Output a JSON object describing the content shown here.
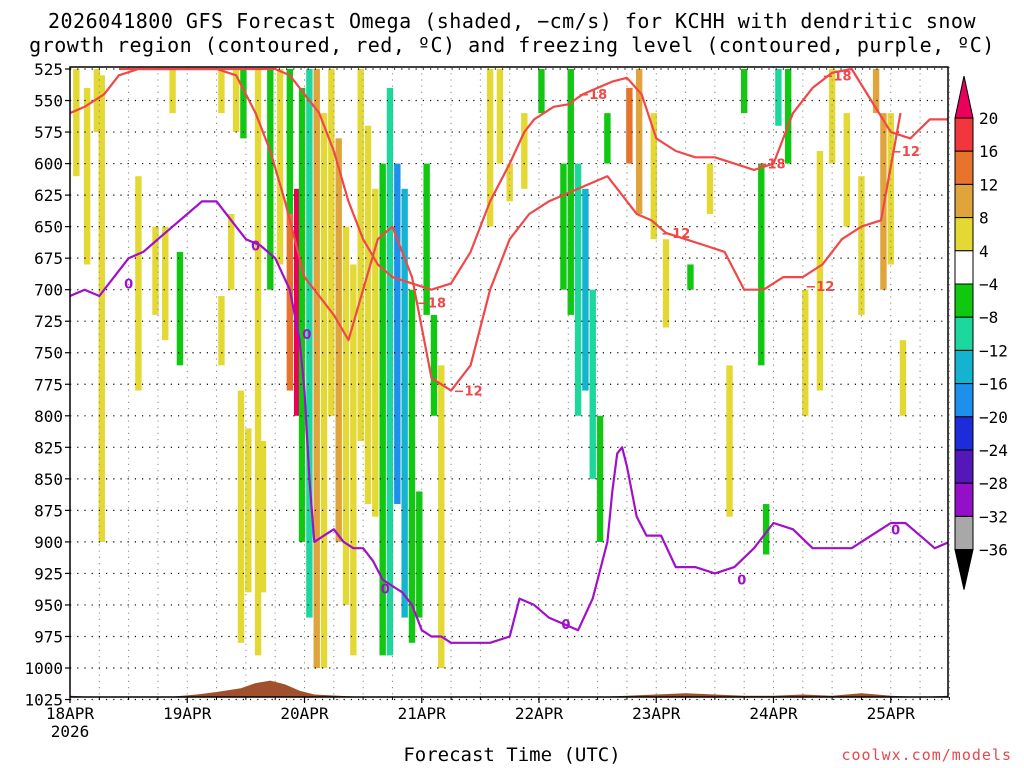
{
  "header": {
    "title_line1": "2026041800 GFS Forecast Omega (shaded, −cm/s) for KCHH with dendritic snow",
    "title_line2": "growth region (contoured, red, ºC) and freezing level (contoured, purple, ºC)"
  },
  "footer": {
    "xlabel": "Forecast Time (UTC)",
    "credit": "coolwx.com/models"
  },
  "chart_data": {
    "type": "heatmap",
    "title": "2026041800 GFS Forecast Omega (shaded, −cm/s) for KCHH with dendritic snow growth region (contoured, red, ºC) and freezing level (contoured, purple, ºC)",
    "xlabel": "Forecast Time (UTC)",
    "ylabel": "",
    "x_range_hours": [
      0,
      180
    ],
    "y_axis": "pressure (hPa), inverted",
    "ylim": [
      1030,
      525
    ],
    "x_ticks": [
      {
        "hour": 0,
        "label": "18APR",
        "sublabel": "2026"
      },
      {
        "hour": 24,
        "label": "19APR"
      },
      {
        "hour": 48,
        "label": "20APR"
      },
      {
        "hour": 72,
        "label": "21APR"
      },
      {
        "hour": 96,
        "label": "22APR"
      },
      {
        "hour": 120,
        "label": "23APR"
      },
      {
        "hour": 144,
        "label": "24APR"
      },
      {
        "hour": 168,
        "label": "25APR"
      }
    ],
    "y_ticks": [
      525,
      550,
      575,
      600,
      625,
      650,
      675,
      700,
      725,
      750,
      775,
      800,
      825,
      850,
      875,
      900,
      925,
      950,
      975,
      1000,
      1025
    ],
    "grid": true,
    "colorbar": {
      "labels": [
        "20",
        "16",
        "12",
        "8",
        "4",
        "−4",
        "−8",
        "−12",
        "−16",
        "−20",
        "−24",
        "−28",
        "−32",
        "−36"
      ],
      "colors": [
        "#e8005a",
        "#f0383c",
        "#e8742c",
        "#e0a43c",
        "#e4d834",
        "#ffffff",
        "#10c810",
        "#1cd89c",
        "#14b4d0",
        "#1c90ec",
        "#1c2cd8",
        "#5418b8",
        "#9410c8",
        "#a8a8a8",
        "#000000"
      ]
    },
    "omega_cells": [
      {
        "x": 1.3,
        "p1": 525,
        "p2": 610,
        "v": 5
      },
      {
        "x": 3.5,
        "p1": 540,
        "p2": 680,
        "v": 5
      },
      {
        "x": 5.5,
        "p1": 525,
        "p2": 575,
        "v": 5
      },
      {
        "x": 6.5,
        "p1": 530,
        "p2": 900,
        "v": 5
      },
      {
        "x": 14,
        "p1": 610,
        "p2": 780,
        "v": 5
      },
      {
        "x": 17.5,
        "p1": 650,
        "p2": 720,
        "v": 5
      },
      {
        "x": 19.5,
        "p1": 650,
        "p2": 740,
        "v": 5
      },
      {
        "x": 21,
        "p1": 525,
        "p2": 560,
        "v": 5
      },
      {
        "x": 22.5,
        "p1": 670,
        "p2": 760,
        "v": -5
      },
      {
        "x": 31,
        "p1": 525,
        "p2": 560,
        "v": 5
      },
      {
        "x": 31,
        "p1": 705,
        "p2": 760,
        "v": 5
      },
      {
        "x": 34,
        "p1": 525,
        "p2": 575,
        "v": 5
      },
      {
        "x": 35.5,
        "p1": 525,
        "p2": 580,
        "v": -5
      },
      {
        "x": 33,
        "p1": 640,
        "p2": 700,
        "v": 5
      },
      {
        "x": 35,
        "p1": 780,
        "p2": 980,
        "v": 5
      },
      {
        "x": 36.5,
        "p1": 810,
        "p2": 940,
        "v": 5
      },
      {
        "x": 38.5,
        "p1": 525,
        "p2": 990,
        "v": 5
      },
      {
        "x": 39.5,
        "p1": 820,
        "p2": 940,
        "v": 5
      },
      {
        "x": 41,
        "p1": 525,
        "p2": 700,
        "v": -5
      },
      {
        "x": 43,
        "p1": 525,
        "p2": 680,
        "v": 5
      },
      {
        "x": 45,
        "p1": 525,
        "p2": 640,
        "v": -5
      },
      {
        "x": 45,
        "p1": 640,
        "p2": 780,
        "v": 13
      },
      {
        "x": 46.5,
        "p1": 620,
        "p2": 800,
        "v": 20
      },
      {
        "x": 47.5,
        "p1": 540,
        "p2": 900,
        "v": -6
      },
      {
        "x": 49,
        "p1": 525,
        "p2": 960,
        "v": -9
      },
      {
        "x": 50.5,
        "p1": 525,
        "p2": 1000,
        "v": 9
      },
      {
        "x": 52,
        "p1": 560,
        "p2": 1000,
        "v": 5
      },
      {
        "x": 53.5,
        "p1": 525,
        "p2": 800,
        "v": 5
      },
      {
        "x": 55,
        "p1": 580,
        "p2": 900,
        "v": 11
      },
      {
        "x": 56.5,
        "p1": 650,
        "p2": 950,
        "v": 5
      },
      {
        "x": 58,
        "p1": 680,
        "p2": 990,
        "v": 5
      },
      {
        "x": 59.5,
        "p1": 525,
        "p2": 820,
        "v": 5
      },
      {
        "x": 61,
        "p1": 570,
        "p2": 870,
        "v": 5
      },
      {
        "x": 62.5,
        "p1": 620,
        "p2": 880,
        "v": 5
      },
      {
        "x": 64,
        "p1": 600,
        "p2": 990,
        "v": -7
      },
      {
        "x": 65.5,
        "p1": 540,
        "p2": 990,
        "v": -11
      },
      {
        "x": 67,
        "p1": 600,
        "p2": 870,
        "v": -17
      },
      {
        "x": 68.5,
        "p1": 620,
        "p2": 960,
        "v": -13
      },
      {
        "x": 70,
        "p1": 700,
        "p2": 980,
        "v": -6
      },
      {
        "x": 71.5,
        "p1": 860,
        "p2": 960,
        "v": -6
      },
      {
        "x": 73,
        "p1": 600,
        "p2": 720,
        "v": -6
      },
      {
        "x": 74.5,
        "p1": 720,
        "p2": 800,
        "v": -5
      },
      {
        "x": 76,
        "p1": 760,
        "p2": 1000,
        "v": 5
      },
      {
        "x": 86,
        "p1": 525,
        "p2": 650,
        "v": 5
      },
      {
        "x": 88,
        "p1": 525,
        "p2": 600,
        "v": 5
      },
      {
        "x": 90,
        "p1": 600,
        "p2": 630,
        "v": 5
      },
      {
        "x": 93,
        "p1": 560,
        "p2": 620,
        "v": 5
      },
      {
        "x": 96.5,
        "p1": 525,
        "p2": 560,
        "v": -5
      },
      {
        "x": 101,
        "p1": 600,
        "p2": 700,
        "v": -6
      },
      {
        "x": 102.5,
        "p1": 525,
        "p2": 720,
        "v": -6
      },
      {
        "x": 104,
        "p1": 600,
        "p2": 800,
        "v": -9
      },
      {
        "x": 105.5,
        "p1": 620,
        "p2": 780,
        "v": -13
      },
      {
        "x": 107,
        "p1": 700,
        "p2": 850,
        "v": -9
      },
      {
        "x": 108.5,
        "p1": 800,
        "p2": 900,
        "v": -6
      },
      {
        "x": 110,
        "p1": 560,
        "p2": 600,
        "v": -6
      },
      {
        "x": 114.5,
        "p1": 540,
        "p2": 600,
        "v": 13
      },
      {
        "x": 116.5,
        "p1": 525,
        "p2": 640,
        "v": 10
      },
      {
        "x": 119.5,
        "p1": 560,
        "p2": 660,
        "v": 5
      },
      {
        "x": 122,
        "p1": 660,
        "p2": 730,
        "v": 5
      },
      {
        "x": 127,
        "p1": 680,
        "p2": 700,
        "v": -6
      },
      {
        "x": 131,
        "p1": 600,
        "p2": 640,
        "v": 5
      },
      {
        "x": 135,
        "p1": 760,
        "p2": 880,
        "v": 5
      },
      {
        "x": 138,
        "p1": 525,
        "p2": 560,
        "v": -6
      },
      {
        "x": 141.5,
        "p1": 600,
        "p2": 760,
        "v": -6
      },
      {
        "x": 142.5,
        "p1": 870,
        "p2": 910,
        "v": -6
      },
      {
        "x": 145,
        "p1": 525,
        "p2": 570,
        "v": -8
      },
      {
        "x": 147,
        "p1": 525,
        "p2": 600,
        "v": -6
      },
      {
        "x": 150.5,
        "p1": 700,
        "p2": 800,
        "v": 5
      },
      {
        "x": 153.5,
        "p1": 590,
        "p2": 780,
        "v": 5
      },
      {
        "x": 156,
        "p1": 525,
        "p2": 600,
        "v": 5
      },
      {
        "x": 159,
        "p1": 560,
        "p2": 650,
        "v": 5
      },
      {
        "x": 162,
        "p1": 610,
        "p2": 720,
        "v": 5
      },
      {
        "x": 165,
        "p1": 525,
        "p2": 560,
        "v": 9
      },
      {
        "x": 166.5,
        "p1": 560,
        "p2": 700,
        "v": 9
      },
      {
        "x": 168,
        "p1": 560,
        "p2": 680,
        "v": 5
      },
      {
        "x": 170.5,
        "p1": 740,
        "p2": 800,
        "v": 5
      }
    ],
    "series": [
      {
        "name": "-18",
        "color": "#f04848",
        "x": [
          0,
          3,
          7,
          10,
          14,
          18,
          22,
          26,
          30,
          34,
          38,
          42,
          45,
          48,
          51,
          54,
          57,
          60,
          63,
          66,
          70,
          74,
          78,
          82,
          86,
          90,
          93,
          95,
          97,
          99,
          102,
          105,
          108,
          111,
          114,
          117,
          120,
          124,
          128,
          132,
          136,
          140,
          144,
          148,
          152,
          156,
          160,
          164,
          168,
          172,
          176,
          180
        ],
        "y": [
          560,
          555,
          545,
          530,
          525,
          525,
          525,
          525,
          525,
          525,
          525,
          525,
          530,
          545,
          560,
          590,
          630,
          660,
          680,
          690,
          695,
          700,
          695,
          670,
          630,
          600,
          575,
          565,
          560,
          555,
          553,
          545,
          540,
          535,
          532,
          545,
          580,
          590,
          595,
          595,
          600,
          605,
          600,
          560,
          540,
          528,
          525,
          550,
          575,
          580,
          565,
          565
        ]
      },
      {
        "name": "-12",
        "color": "#f04848",
        "x": [
          10,
          14,
          18,
          22,
          26,
          30,
          34,
          38,
          41,
          44,
          46,
          48,
          51,
          54,
          57,
          60,
          63,
          66,
          70,
          74,
          78,
          82,
          86,
          90,
          94,
          98,
          101,
          104,
          107,
          110,
          113,
          116,
          119,
          122,
          126,
          130,
          134,
          138,
          142,
          146,
          150,
          154,
          158,
          162,
          166,
          170
        ],
        "y": [
          525,
          525,
          525,
          525,
          525,
          525,
          530,
          560,
          590,
          630,
          660,
          690,
          705,
          720,
          740,
          700,
          660,
          650,
          690,
          770,
          780,
          760,
          700,
          660,
          640,
          630,
          625,
          620,
          615,
          610,
          625,
          640,
          645,
          655,
          660,
          665,
          670,
          700,
          700,
          690,
          690,
          680,
          660,
          650,
          645,
          560
        ]
      },
      {
        "name": "0",
        "color": "#a010c8",
        "x": [
          0,
          3,
          6,
          9,
          12,
          15,
          18,
          21,
          24,
          27,
          30,
          33,
          36,
          39,
          42,
          45,
          47,
          48,
          49,
          50,
          52,
          54,
          56,
          58,
          60,
          62,
          64,
          66,
          68,
          70,
          72,
          74,
          76,
          78,
          82,
          86,
          90,
          92,
          95,
          98,
          101,
          104,
          107,
          110,
          111,
          112,
          113,
          114,
          116,
          118,
          121,
          124,
          128,
          132,
          136,
          140,
          144,
          148,
          152,
          156,
          160,
          164,
          168,
          171,
          174,
          177,
          180
        ],
        "y": [
          705,
          700,
          705,
          690,
          675,
          670,
          660,
          650,
          640,
          630,
          630,
          645,
          660,
          665,
          675,
          700,
          740,
          780,
          850,
          900,
          895,
          890,
          900,
          905,
          905,
          915,
          930,
          935,
          940,
          950,
          970,
          975,
          975,
          980,
          980,
          980,
          975,
          945,
          950,
          960,
          965,
          970,
          945,
          900,
          860,
          830,
          825,
          840,
          880,
          895,
          895,
          920,
          920,
          925,
          920,
          905,
          885,
          890,
          905,
          905,
          905,
          895,
          885,
          885,
          895,
          905,
          900
        ]
      }
    ],
    "contour_labels": [
      {
        "text": "0",
        "color": "#a010c8",
        "x": 12,
        "p": 695
      },
      {
        "text": "0",
        "color": "#a010c8",
        "x": 38,
        "p": 665
      },
      {
        "text": "0",
        "color": "#a010c8",
        "x": 48.5,
        "p": 735
      },
      {
        "text": "0",
        "color": "#a010c8",
        "x": 64.5,
        "p": 937
      },
      {
        "text": "0",
        "color": "#a010c8",
        "x": 101.5,
        "p": 965
      },
      {
        "text": "0",
        "color": "#a010c8",
        "x": 137.5,
        "p": 930
      },
      {
        "text": "0",
        "color": "#a010c8",
        "x": 169,
        "p": 890
      },
      {
        "text": "−18",
        "color": "#f04848",
        "x": 74,
        "p": 710
      },
      {
        "text": "−12",
        "color": "#f04848",
        "x": 81.5,
        "p": 780
      },
      {
        "text": "−18",
        "color": "#f04848",
        "x": 107,
        "p": 545
      },
      {
        "text": "−12",
        "color": "#f04848",
        "x": 124,
        "p": 655
      },
      {
        "text": "−18",
        "color": "#f04848",
        "x": 143.5,
        "p": 600
      },
      {
        "text": "−12",
        "color": "#f04848",
        "x": 153.5,
        "p": 697
      },
      {
        "text": "−18",
        "color": "#f04848",
        "x": 157,
        "p": 530
      },
      {
        "text": "−12",
        "color": "#f04848",
        "x": 171,
        "p": 590
      }
    ],
    "terrain": {
      "color": "#a0502c",
      "x": [
        0,
        10,
        20,
        26,
        30,
        35,
        38,
        41,
        44,
        47,
        50,
        55,
        60,
        64,
        68,
        72,
        78,
        84,
        90,
        96,
        102,
        108,
        114,
        120,
        126,
        132,
        138,
        144,
        150,
        156,
        162,
        168,
        174,
        180
      ],
      "p": [
        1022,
        1024,
        1023,
        1021,
        1019,
        1016,
        1012,
        1010,
        1013,
        1018,
        1021,
        1022,
        1023,
        1023,
        1024,
        1025,
        1027,
        1028,
        1027,
        1026,
        1025,
        1023,
        1022,
        1021,
        1020,
        1021,
        1022,
        1022,
        1021,
        1022,
        1020,
        1022,
        1023,
        1022
      ]
    }
  }
}
